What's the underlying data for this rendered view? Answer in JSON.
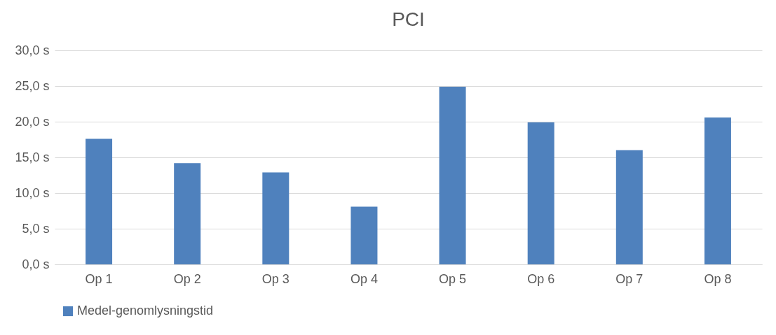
{
  "chart_data": {
    "type": "bar",
    "title": "PCI",
    "categories": [
      "Op 1",
      "Op 2",
      "Op 3",
      "Op 4",
      "Op 5",
      "Op 6",
      "Op 7",
      "Op 8"
    ],
    "series": [
      {
        "name": "Medel-genomlysningstid",
        "color": "#4f81bd",
        "values": [
          17.6,
          14.2,
          12.9,
          8.1,
          24.9,
          19.9,
          16.0,
          20.6
        ]
      }
    ],
    "ylim": [
      0,
      30
    ],
    "yticks": [
      {
        "value": 0,
        "label": "0,0 s"
      },
      {
        "value": 5,
        "label": "5,0 s"
      },
      {
        "value": 10,
        "label": "10,0 s"
      },
      {
        "value": 15,
        "label": "15,0 s"
      },
      {
        "value": 20,
        "label": "20,0 s"
      },
      {
        "value": 25,
        "label": "25,0 s"
      },
      {
        "value": 30,
        "label": "30,0 s"
      }
    ],
    "grid": "y",
    "legend": "bottom"
  }
}
